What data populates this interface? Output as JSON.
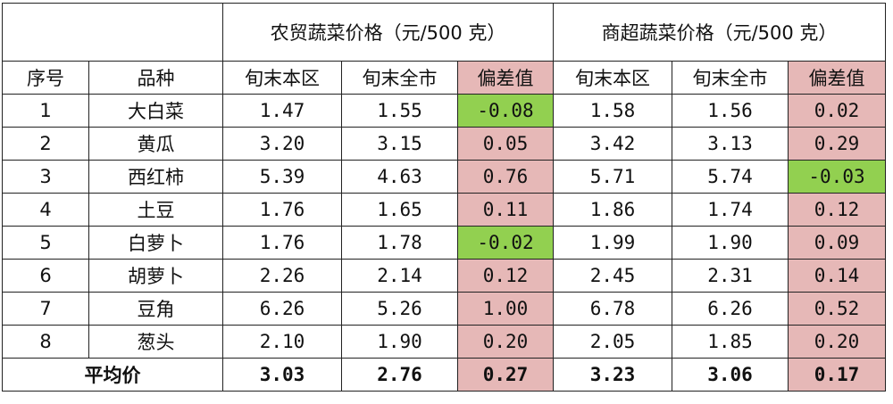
{
  "headers": {
    "group1": "农贸蔬菜价格（元/500 克）",
    "group2": "商超蔬菜价格（元/500 克）",
    "col_no": "序号",
    "col_name": "品种",
    "local": "旬末本区",
    "city": "旬末全市",
    "diff": "偏差值"
  },
  "rows": [
    {
      "no": "1",
      "name": "大白菜",
      "m_local": "1.47",
      "m_city": "1.55",
      "m_diff": "-0.08",
      "s_local": "1.58",
      "s_city": "1.56",
      "s_diff": "0.02"
    },
    {
      "no": "2",
      "name": "黄瓜",
      "m_local": "3.20",
      "m_city": "3.15",
      "m_diff": "0.05",
      "s_local": "3.42",
      "s_city": "3.13",
      "s_diff": "0.29"
    },
    {
      "no": "3",
      "name": "西红柿",
      "m_local": "5.39",
      "m_city": "4.63",
      "m_diff": "0.76",
      "s_local": "5.71",
      "s_city": "5.74",
      "s_diff": "-0.03"
    },
    {
      "no": "4",
      "name": "土豆",
      "m_local": "1.76",
      "m_city": "1.65",
      "m_diff": "0.11",
      "s_local": "1.86",
      "s_city": "1.74",
      "s_diff": "0.12"
    },
    {
      "no": "5",
      "name": "白萝卜",
      "m_local": "1.76",
      "m_city": "1.78",
      "m_diff": "-0.02",
      "s_local": "1.99",
      "s_city": "1.90",
      "s_diff": "0.09"
    },
    {
      "no": "6",
      "name": "胡萝卜",
      "m_local": "2.26",
      "m_city": "2.14",
      "m_diff": "0.12",
      "s_local": "2.45",
      "s_city": "2.31",
      "s_diff": "0.14"
    },
    {
      "no": "7",
      "name": "豆角",
      "m_local": "6.26",
      "m_city": "5.26",
      "m_diff": "1.00",
      "s_local": "6.78",
      "s_city": "6.26",
      "s_diff": "0.52"
    },
    {
      "no": "8",
      "name": "葱头",
      "m_local": "2.10",
      "m_city": "1.90",
      "m_diff": "0.20",
      "s_local": "2.05",
      "s_city": "1.85",
      "s_diff": "0.20"
    }
  ],
  "average": {
    "label": "平均价",
    "m_local": "3.03",
    "m_city": "2.76",
    "m_diff": "0.27",
    "s_local": "3.23",
    "s_city": "3.06",
    "s_diff": "0.17"
  },
  "colors": {
    "positive_fill": "#e6b8b7",
    "negative_fill": "#92d050"
  }
}
